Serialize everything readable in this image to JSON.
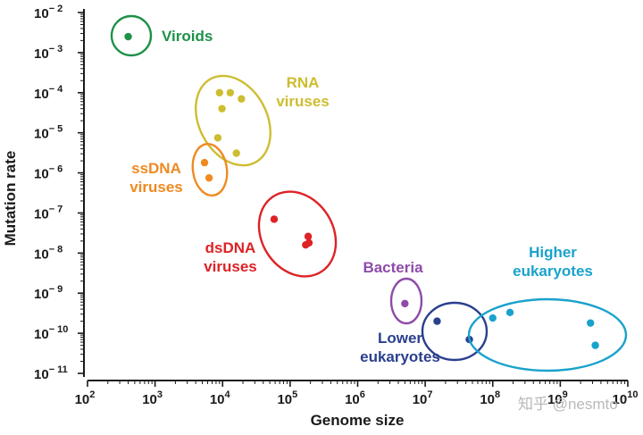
{
  "chart_data": {
    "type": "scatter",
    "xlabel": "Genome size",
    "ylabel": "Mutation rate",
    "x_scale": "log",
    "y_scale": "log",
    "xlim": [
      100,
      10000000000
    ],
    "ylim": [
      1e-11,
      0.01
    ],
    "x_ticks": [
      {
        "base": "10",
        "exp": "2"
      },
      {
        "base": "10",
        "exp": "3"
      },
      {
        "base": "10",
        "exp": "4"
      },
      {
        "base": "10",
        "exp": "5"
      },
      {
        "base": "10",
        "exp": "6"
      },
      {
        "base": "10",
        "exp": "7"
      },
      {
        "base": "10",
        "exp": "8"
      },
      {
        "base": "10",
        "exp": "9"
      },
      {
        "base": "10",
        "exp": "10"
      }
    ],
    "y_ticks": [
      {
        "base": "10",
        "exp": "− 2"
      },
      {
        "base": "10",
        "exp": "− 3"
      },
      {
        "base": "10",
        "exp": "− 4"
      },
      {
        "base": "10",
        "exp": "− 5"
      },
      {
        "base": "10",
        "exp": "− 6"
      },
      {
        "base": "10",
        "exp": "− 7"
      },
      {
        "base": "10",
        "exp": "− 8"
      },
      {
        "base": "10",
        "exp": "− 9"
      },
      {
        "base": "10",
        "exp": "− 10"
      },
      {
        "base": "10",
        "exp": "− 11"
      }
    ],
    "grid": false,
    "groups": [
      {
        "label": [
          "Viroids"
        ],
        "color": "#1e9148",
        "points": [
          [
            400,
            0.0025
          ]
        ]
      },
      {
        "label": [
          "RNA",
          "viruses"
        ],
        "color": "#cdbd30",
        "points": [
          [
            9000,
            0.0001
          ],
          [
            13000,
            0.0001
          ],
          [
            19000,
            7e-05
          ],
          [
            9800,
            4e-05
          ],
          [
            8500,
            7.5e-06
          ],
          [
            16000,
            3.1e-06
          ]
        ]
      },
      {
        "label": [
          "ssDNA",
          "viruses"
        ],
        "color": "#ef8a22",
        "points": [
          [
            5400,
            1.8e-06
          ],
          [
            6300,
            7.5e-07
          ]
        ]
      },
      {
        "label": [
          "dsDNA",
          "viruses"
        ],
        "color": "#de2226",
        "points": [
          [
            58000,
            7e-08
          ],
          [
            185000,
            2.6e-08
          ],
          [
            190000,
            1.8e-08
          ],
          [
            170000,
            1.6e-08
          ]
        ]
      },
      {
        "label": [
          "Bacteria"
        ],
        "color": "#8e4ba8",
        "points": [
          [
            5000000,
            5.5e-10
          ]
        ]
      },
      {
        "label": [
          "Lower",
          "eukaryotes"
        ],
        "color": "#2a3f8e",
        "points": [
          [
            15000000,
            2e-10
          ],
          [
            45000000,
            7e-11
          ]
        ]
      },
      {
        "label": [
          "Higher",
          "eukaryotes"
        ],
        "color": "#1aa2cc",
        "points": [
          [
            100000000,
            2.4e-10
          ],
          [
            180000000,
            3.3e-10
          ],
          [
            2800000000,
            1.8e-10
          ],
          [
            3300000000,
            5e-11
          ]
        ]
      }
    ]
  },
  "watermark": "知乎 @nesmto"
}
